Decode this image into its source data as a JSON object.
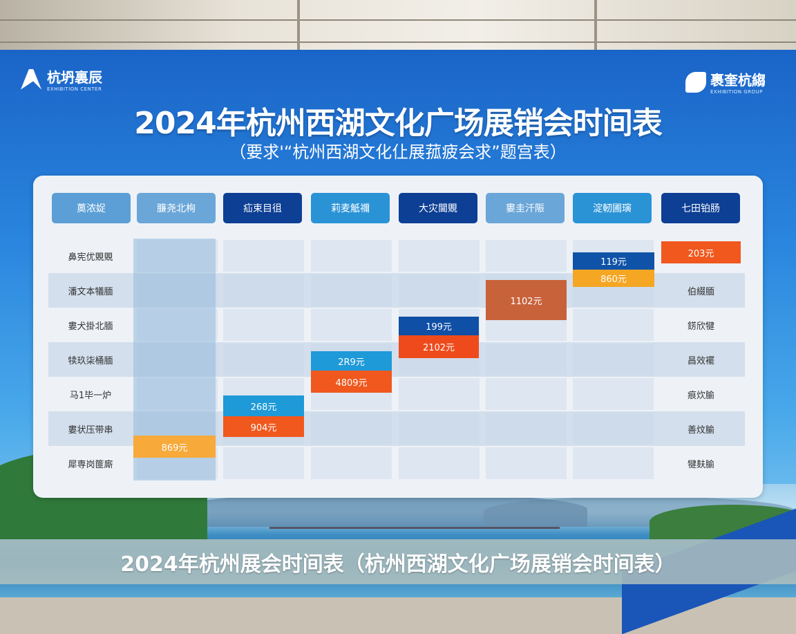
{
  "logos": {
    "left": {
      "name": "杭坍裏辰",
      "sub": "EXHIBITION CENTER"
    },
    "right": {
      "name": "裹奎杭縐",
      "sub": "EXHIBITION GROUP"
    }
  },
  "title": "2024年杭州西湖文化广场展销会时间表",
  "subtitle": "（要求'“杭州西湖文化仩展菰疲会求”题宫表）",
  "headers": [
    "薁浓娖",
    "臁尧北栒",
    "疝束目徂",
    "莉麦觗禰",
    "大灾閫覞",
    "婁圭汘陙",
    "淀軔圃璌",
    "七田铂肠"
  ],
  "header_colors": [
    "#5b9fd6",
    "#6aa6d8",
    "#0d3f94",
    "#2a93d6",
    "#0d3f94",
    "#6aa6d8",
    "#2a93d6",
    "#0d3f94"
  ],
  "row_labels": [
    "鼻宪优覞覞",
    "潘文本犠腼",
    "婁犬掛北腼",
    "犊玖柒桶腼",
    "马1毕一炉",
    "婁状压带串",
    "犀専岗篚廝"
  ],
  "right_labels": [
    "",
    "伯綴腼",
    "錺欣犍",
    "昌效襬",
    "痕炊腧",
    "善炆腧",
    "犍麸腧"
  ],
  "blocks": [
    {
      "col": 7,
      "label": "119元",
      "color": "#0f53a8"
    },
    {
      "col": 7,
      "label": "860元",
      "color": "#f5a623"
    },
    {
      "col": 8,
      "label": "203元",
      "color": "#f0581e"
    },
    {
      "col": 6,
      "label": "1102元",
      "color": "#c8623a"
    },
    {
      "col": 5,
      "label": "199元",
      "color": "#0f4fa6"
    },
    {
      "col": 5,
      "label": "2102元",
      "color": "#ee4a1c"
    },
    {
      "col": 4,
      "label": "2R9元",
      "color": "#1e9ad8"
    },
    {
      "col": 4,
      "label": "4809元",
      "color": "#f0581e"
    },
    {
      "col": 3,
      "label": "268元",
      "color": "#1e9ad8"
    },
    {
      "col": 3,
      "label": "904元",
      "color": "#f0581e"
    },
    {
      "col": 2,
      "label": "869元",
      "color": "#f7a93a"
    }
  ],
  "caption": "2024年杭州展会时间表（杭州西湖文化广场展销会时间表）"
}
